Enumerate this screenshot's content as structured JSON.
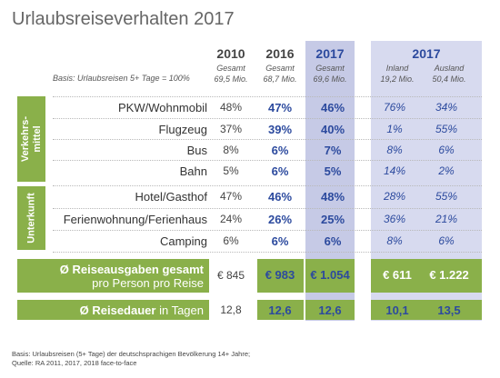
{
  "title": "Urlaubsreiseverhalten 2017",
  "basis": "Basis: Urlaubsreisen 5+ Tage = 100%",
  "columns": {
    "c2010": {
      "label": "2010",
      "sub1": "Gesamt",
      "sub2": "69,5 Mio."
    },
    "c2016": {
      "label": "2016",
      "sub1": "Gesamt",
      "sub2": "68,7 Mio."
    },
    "c2017": {
      "label": "2017",
      "sub1": "Gesamt",
      "sub2": "69,6 Mio."
    },
    "split": {
      "label": "2017",
      "inland": "Inland",
      "inland_sub": "19,2 Mio.",
      "ausland": "Ausland",
      "ausland_sub": "50,4 Mio."
    }
  },
  "section_verkehrsmittel": {
    "label_line1": "Verkehrs-",
    "label_line2": "mittel",
    "rows": [
      {
        "label": "PKW/Wohnmobil",
        "v2010": "48%",
        "v2016": "47%",
        "v2017": "46%",
        "inland": "76%",
        "ausland": "34%"
      },
      {
        "label": "Flugzeug",
        "v2010": "37%",
        "v2016": "39%",
        "v2017": "40%",
        "inland": "1%",
        "ausland": "55%"
      },
      {
        "label": "Bus",
        "v2010": "8%",
        "v2016": "6%",
        "v2017": "7%",
        "inland": "8%",
        "ausland": "6%"
      },
      {
        "label": "Bahn",
        "v2010": "5%",
        "v2016": "6%",
        "v2017": "5%",
        "inland": "14%",
        "ausland": "2%"
      }
    ]
  },
  "section_unterkunft": {
    "label": "Unterkunft",
    "rows": [
      {
        "label": "Hotel/Gasthof",
        "v2010": "47%",
        "v2016": "46%",
        "v2017": "48%",
        "inland": "28%",
        "ausland": "55%"
      },
      {
        "label": "Ferienwohnung/Ferienhaus",
        "v2010": "24%",
        "v2016": "26%",
        "v2017": "25%",
        "inland": "36%",
        "ausland": "21%"
      },
      {
        "label": "Camping",
        "v2010": "6%",
        "v2016": "6%",
        "v2017": "6%",
        "inland": "8%",
        "ausland": "6%"
      }
    ]
  },
  "ausgaben": {
    "label_bold": "Ø Reiseausgaben gesamt",
    "label_sub": "pro Person pro Reise",
    "v2010": "€ 845",
    "v2016": "€ 983",
    "v2017": "€ 1.054",
    "inland": "€ 611",
    "ausland": "€ 1.222"
  },
  "dauer": {
    "label_bold": "Ø Reisedauer",
    "label_rest": " in Tagen",
    "v2010": "12,8",
    "v2016": "12,6",
    "v2017": "12,6",
    "inland": "10,1",
    "ausland": "13,5"
  },
  "footer": {
    "line1": "Basis: Urlaubsreisen (5+ Tage) der deutschsprachigen Bevölkerung 14+ Jahre;",
    "line2": "Quelle: RA 2011, 2017, 2018 face-to-face"
  },
  "colors": {
    "band_green": "#8ab04a",
    "highlight_blue": "#c6cae6",
    "value_blue": "#2c4a9e"
  }
}
